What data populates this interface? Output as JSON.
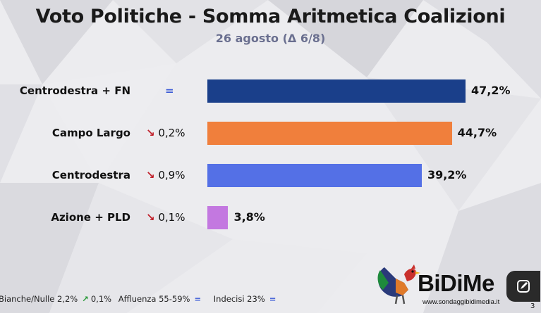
{
  "title": "Voto Politiche - Somma Aritmetica Coalizioni",
  "subtitle": "26 agosto (Δ 6/8)",
  "chart_data": {
    "type": "bar",
    "orientation": "horizontal",
    "categories": [
      "Centrodestra + FN",
      "Campo Largo",
      "Centrodestra",
      "Azione + PLD"
    ],
    "values": [
      47.2,
      44.7,
      39.2,
      3.8
    ],
    "value_labels": [
      "47,2%",
      "44,7%",
      "39,2%",
      "3,8%"
    ],
    "deltas": [
      {
        "direction": "equal",
        "symbol": "=",
        "text": ""
      },
      {
        "direction": "down",
        "symbol": "↘",
        "text": "0,2%"
      },
      {
        "direction": "down",
        "symbol": "↘",
        "text": "0,9%"
      },
      {
        "direction": "down",
        "symbol": "↘",
        "text": "0,1%"
      }
    ],
    "colors": [
      "#1a3f8a",
      "#f07f3c",
      "#5470e6",
      "#c378e0"
    ],
    "xlim": [
      0,
      50
    ]
  },
  "footer": {
    "bianche_label": "Bianche/Nulle 2,2%",
    "bianche_arrow": "↗",
    "bianche_delta": "0,1%",
    "affluenza_label": "Affluenza 55-59%",
    "affluenza_delta": "=",
    "indecisi_label": "Indecisi 23%",
    "indecisi_delta": "="
  },
  "logo": {
    "name": "BiDiMe",
    "url": "www.sondaggibidimedia.it"
  },
  "page_number": "3"
}
